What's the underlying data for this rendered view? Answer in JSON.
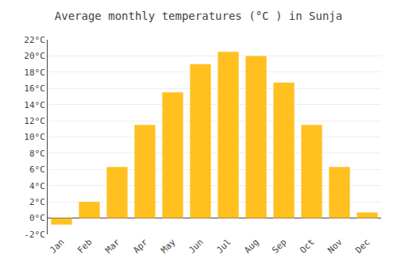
{
  "chart_data": {
    "type": "bar",
    "title": "Average monthly temperatures (°C ) in Sunja",
    "categories": [
      "Jan",
      "Feb",
      "Mar",
      "Apr",
      "May",
      "Jun",
      "Jul",
      "Aug",
      "Sep",
      "Oct",
      "Nov",
      "Dec"
    ],
    "values": [
      -0.8,
      2.0,
      6.3,
      11.5,
      15.5,
      19.0,
      20.5,
      20.0,
      16.7,
      11.5,
      6.3,
      0.7
    ],
    "color": "#FFC020",
    "ylim": [
      -2,
      22
    ],
    "yticks": [
      {
        "value": -2,
        "label": "-2°C"
      },
      {
        "value": 0,
        "label": "0°C"
      },
      {
        "value": 2,
        "label": "2°C"
      },
      {
        "value": 4,
        "label": "4°C"
      },
      {
        "value": 6,
        "label": "6°C"
      },
      {
        "value": 8,
        "label": "8°C"
      },
      {
        "value": 10,
        "label": "10°C"
      },
      {
        "value": 12,
        "label": "12°C"
      },
      {
        "value": 14,
        "label": "14°C"
      },
      {
        "value": 16,
        "label": "16°C"
      },
      {
        "value": 18,
        "label": "18°C"
      },
      {
        "value": 20,
        "label": "20°C"
      },
      {
        "value": 22,
        "label": "22°C"
      }
    ],
    "grid": true
  }
}
